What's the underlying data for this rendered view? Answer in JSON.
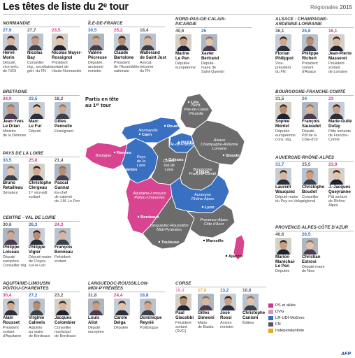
{
  "header": {
    "title": "Les têtes de liste du 2ᵉ tour",
    "subtitle": "Régionales",
    "year": "2015"
  },
  "colors": {
    "ps": "#d6378e",
    "dvg": "#e48fb8",
    "lr": "#2c6fc4",
    "fn": "#555555",
    "ind": "#e9a820",
    "map_ps": "#d8448f",
    "map_lr": "#3a70c2",
    "map_fn": "#6c6c6c"
  },
  "regions": [
    {
      "id": "normandie",
      "name": "NORMANDIE",
      "candidates": [
        {
          "pct": "27,9",
          "name": "Hervé\nMorin",
          "desc": "Député,\nvice-prés.\nde l'UDI",
          "party": "lr"
        },
        {
          "pct": "27,7",
          "name": "Nicolas\nBay",
          "desc": "Conseiller\nrég., secrétaire\ngén. du FN",
          "party": "fn"
        },
        {
          "pct": "23,5",
          "name": "Nicolas Mayer-\nRossignol",
          "desc": "Président\nsortant de\nHaute-Normandie",
          "party": "ps"
        }
      ]
    },
    {
      "id": "idf",
      "name": "ÎLE-DE-FRANCE",
      "candidates": [
        {
          "pct": "30,5",
          "name": "Valérie\nPécresse",
          "desc": "Députée,\nancienne\nministre",
          "party": "lr"
        },
        {
          "pct": "25,2",
          "name": "Claude\nBartolone",
          "desc": "Président\nde l'Assemblée\nnationale",
          "party": "ps"
        },
        {
          "pct": "18,4",
          "name": "Wallerand\nde Saint Just",
          "desc": "Avocat,\ntrésorier\ndu FN",
          "party": "fn"
        }
      ]
    },
    {
      "id": "npdc",
      "name": "NORD-PAS-DE-CALAIS-\nPICARDIE",
      "candidates": [
        {
          "pct": "40,6",
          "name": "Marine\nLe Pen",
          "desc": "Députée\neuropéenne",
          "party": "fn"
        },
        {
          "pct": "25",
          "name": "Xavier\nBertrand",
          "desc": "Député-\nmaire de\nSaint-Quentin",
          "party": "lr"
        }
      ]
    },
    {
      "id": "alsace",
      "name": "ALSACE - CHAMPAGNE-\nARDENNE-LORRAINE",
      "candidates": [
        {
          "pct": "36,1",
          "name": "Florian\nPhilippot",
          "desc": "Vice-\nprésident\ndu FN",
          "party": "fn"
        },
        {
          "pct": "25,8",
          "name": "Philippe\nRichert",
          "desc": "Président\nsortant\nd'Alsace",
          "party": "lr"
        },
        {
          "pct": "16,1",
          "name": "Jean-Pierre\nMasseret",
          "desc": "Président\nsortant\nde Lorraine",
          "party": "ps"
        }
      ]
    },
    {
      "id": "bretagne",
      "name": "BRETAGNE",
      "candidates": [
        {
          "pct": "34,9",
          "name": "Jean-Yves\nLe Drian",
          "desc": "Ministre\nde la Défense",
          "party": "ps"
        },
        {
          "pct": "23,5",
          "name": "Marc\nLe Fur",
          "desc": "Député",
          "party": "lr"
        },
        {
          "pct": "18,2",
          "name": "Gilles\nPennelle",
          "desc": "Enseignant",
          "party": "fn"
        }
      ]
    },
    {
      "id": "bfc",
      "name": "BOURGOGNE-FRANCHE-COMTÉ",
      "candidates": [
        {
          "pct": "31,5",
          "name": "Sophie\nMontel",
          "desc": "Députée\neuropéenne\ncons. rég.",
          "party": "fn"
        },
        {
          "pct": "24",
          "name": "François\nSauvadet",
          "desc": "Député,\nPdt de la\nCôte-d'Or",
          "party": "lr"
        },
        {
          "pct": "23",
          "name": "Marie-Guite\nDufay",
          "desc": "Pdte sortante\nde Franche-\nComté",
          "party": "ps"
        }
      ]
    },
    {
      "id": "pdl",
      "name": "PAYS DE LA LOIRE",
      "candidates": [
        {
          "pct": "33,5",
          "name": "Bruno\nRetailleau",
          "desc": "Sénateur",
          "party": "lr"
        },
        {
          "pct": "25,8",
          "name": "Christophe\nClergeau",
          "desc": "1ᵉʳ vice-pdt\nsortant",
          "party": "ps"
        },
        {
          "pct": "21,4",
          "name": "Pascal\nGannat",
          "desc": "Ex-chef\nde cabinet\nde J.M. Le Pen",
          "party": "fn"
        }
      ]
    },
    {
      "id": "ara",
      "name": "AUVERGNE-RHÔNE-ALPES",
      "candidates": [
        {
          "pct": "31,7",
          "name": "Laurent\nWauquiez",
          "desc": "Député-maire\ndu Puy-en-Velay",
          "party": "lr"
        },
        {
          "pct": "25,5",
          "name": "Christophe\nBoudot",
          "desc": "Conseiller\nrégional",
          "party": "fn"
        },
        {
          "pct": "23,9",
          "name": "J.-Jacques\nQueyranne",
          "desc": "Pdt sortant\nde Rhône-\nAlpes",
          "party": "ps"
        }
      ]
    },
    {
      "id": "cvl",
      "name": "CENTRE - VAL DE LOIRE",
      "candidates": [
        {
          "pct": "30,6",
          "name": "Philippe\nLoiseau",
          "desc": "Député\neuropéen\nConseiller rég.",
          "party": "fn"
        },
        {
          "pct": "26,3",
          "name": "Philippe\nVigier",
          "desc": "Député-maire\nde Cloyes-\nsur-le-Loir",
          "party": "lr"
        },
        {
          "pct": "24,3",
          "name": "François\nBonneau",
          "desc": "Président\nsortant",
          "party": "ps"
        }
      ]
    },
    {
      "id": "paca",
      "name": "PROVENCE-ALPES-CÔTE D'AZUR",
      "candidates": [
        {
          "pct": "40,6",
          "name": "Marion\nMaréchal-\nLe Pen",
          "desc": "Députée",
          "party": "fn"
        },
        {
          "pct": "26,5",
          "name": "Christian\nEstrosi",
          "desc": "Député-maire\nde Nice",
          "party": "lr"
        }
      ]
    },
    {
      "id": "alpc",
      "name": "AQUITAINE-LIMOUSIN\nPOITOU-CHARENTES",
      "candidates": [
        {
          "pct": "30,4",
          "name": "Alain\nRousset",
          "desc": "Président\nsortant\nd'Aquitaine",
          "party": "ps"
        },
        {
          "pct": "27,2",
          "name": "Virginie\nCalmels",
          "desc": "Adjointe\nau maire\nde Bordeaux",
          "party": "lr"
        },
        {
          "pct": "23,2",
          "name": "Jacques\nColombier",
          "desc": "Conseiller\nmunicipal\nde Bordeaux",
          "party": "fn"
        }
      ]
    },
    {
      "id": "lrmp",
      "name": "LANGUEDOC-ROUSSILLON-\nMIDI-PYRÉNÉES",
      "candidates": [
        {
          "pct": "31,8",
          "name": "Louis\nAliot",
          "desc": "Député\neuropéen",
          "party": "fn"
        },
        {
          "pct": "24,4",
          "name": "Carole\nDelga",
          "desc": "Députée",
          "party": "ps"
        },
        {
          "pct": "18,8",
          "name": "Dominique\nReynié",
          "desc": "Politologue",
          "party": "lr"
        }
      ]
    },
    {
      "id": "corse",
      "name": "CORSE",
      "candidates": [
        {
          "pct": "18,4",
          "name": "Paul\nGiacobbi",
          "desc": "Président\nsortant\n(DVG)",
          "party": "dvg"
        },
        {
          "pct": "17,6",
          "name": "Gilles\nSimeoni",
          "desc": "Maire\nde Bastia",
          "party": "ind"
        },
        {
          "pct": "13,2",
          "name": "José\nRossi",
          "desc": "Ancien\nministre",
          "party": "lr"
        },
        {
          "pct": "10,6",
          "name": "Christophe\nCanioni",
          "desc": "Éditeur",
          "party": "fn"
        }
      ]
    }
  ],
  "map": {
    "caption": "Partis en tête\nau 1ᵉʳ tour",
    "labels": {
      "npdc": "Nord-\nPas-de-Calais\nPicardie",
      "normandie": "Normandie",
      "idf": "Île-de-France",
      "bretagne": "Bretagne",
      "pdl": "Pays\nde la\nLoire",
      "cvl": "Centre-\nVal de\nLoire",
      "alsace": "Alsace\nChampagne-Ardenne\nLorraine",
      "bfc": "Bourgogne\nFranche-Comté",
      "alpc": "Aquitaine-Limousin\nPoitou-Charentes",
      "ara": "Auvergne\nRhône-Alpes",
      "lrmp": "Languedoc-Roussillon\nMidi-Pyrénées",
      "paca": "Provence-Alpes\nCôte d'Azur"
    },
    "cities": [
      "Lille",
      "Rouen",
      "Caen",
      "PARIS",
      "Rennes",
      "Nantes",
      "Orléans",
      "Dijon",
      "Strasbourg",
      "Lyon",
      "Bordeaux",
      "Toulouse",
      "Marseille",
      "Ajaccio"
    ]
  },
  "legend": [
    {
      "label": "PS et alliés",
      "color": "#d6378e"
    },
    {
      "label": "DVG",
      "color": "#e48fb8"
    },
    {
      "label": "LR-UDI-MoDem",
      "color": "#2c6fc4"
    },
    {
      "label": "FN",
      "color": "#555555"
    },
    {
      "label": "Indépendantiste",
      "color": "#e9a820"
    }
  ],
  "credit": "AFP"
}
